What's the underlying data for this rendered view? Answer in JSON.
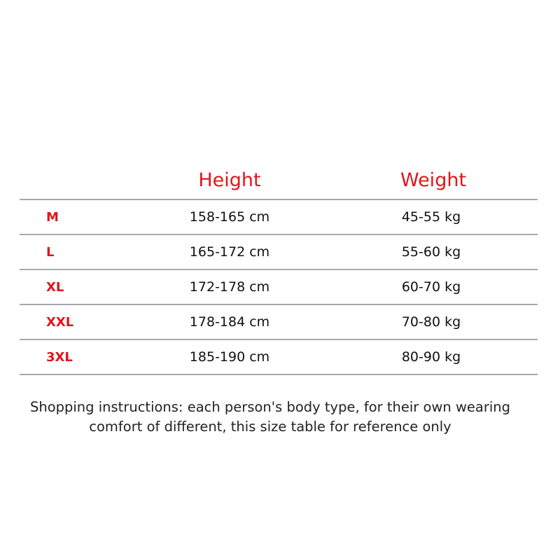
{
  "table": {
    "headers": {
      "height": "Height",
      "weight": "Weight"
    },
    "rows": [
      {
        "size": "M",
        "height": "158-165 cm",
        "weight": "45-55 kg"
      },
      {
        "size": "L",
        "height": "165-172 cm",
        "weight": "55-60 kg"
      },
      {
        "size": "XL",
        "height": "172-178 cm",
        "weight": "60-70 kg"
      },
      {
        "size": "XXL",
        "height": "178-184 cm",
        "weight": "70-80 kg"
      },
      {
        "size": "3XL",
        "height": "185-190 cm",
        "weight": "80-90 kg"
      }
    ]
  },
  "note": {
    "line1": "Shopping instructions: each person's body type, for their own wearing",
    "line2": "comfort of different, this size table for reference only"
  },
  "colors": {
    "accent": "#e0151b",
    "divider": "#a7a8b0",
    "text": "#111111"
  }
}
